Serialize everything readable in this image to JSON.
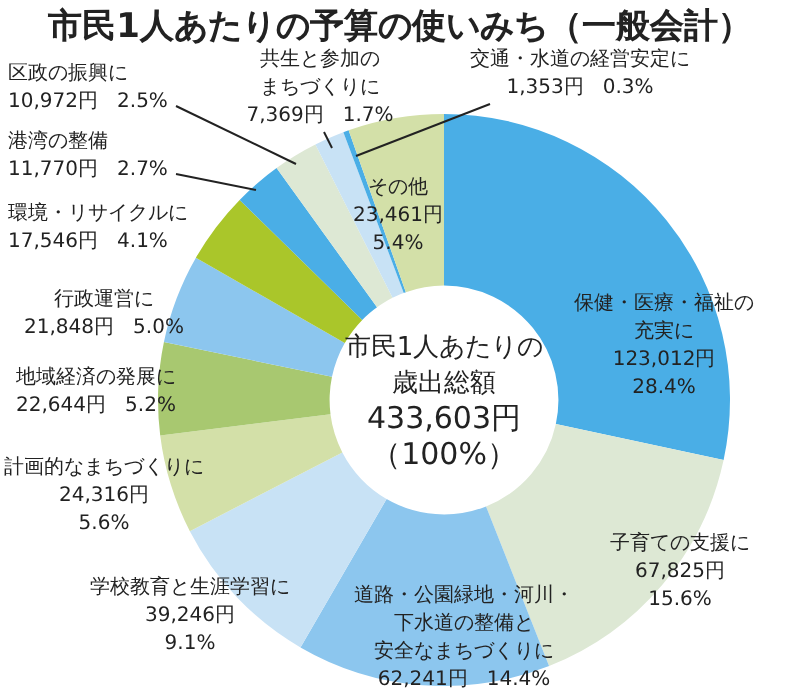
{
  "chart_data": {
    "type": "donut",
    "title": "市民1人あたりの予算の使いみち（一般会計）",
    "categories": [
      "保健・医療・福祉の充実に",
      "子育ての支援に",
      "道路・公園緑地・河川・下水道の整備と安全なまちづくりに",
      "学校教育と生涯学習に",
      "計画的なまちづくりに",
      "地域経済の発展に",
      "行政運営に",
      "環境・リサイクルに",
      "港湾の整備",
      "区政の振興に",
      "共生と参加のまちづくりに",
      "交通・水道の経営安定に",
      "その他"
    ],
    "values": [
      123012,
      67825,
      62241,
      39246,
      24316,
      22644,
      21848,
      17546,
      11770,
      10972,
      7369,
      1353,
      23461
    ],
    "colors": [
      "#4aaee6",
      "#dde8d4",
      "#8cc6ee",
      "#c8e2f5",
      "#d3e0a8",
      "#a8c870",
      "#8cc6ee",
      "#aac62a",
      "#4aaee6",
      "#dde8d4",
      "#c8e2f5",
      "#4aaee6",
      "#d3e0a8"
    ],
    "value_labels": [
      "123,012円 28.4%",
      "67,825円 15.6%",
      "62,241円 14.4%",
      "39,246円 9.1%",
      "24,316円 5.6%",
      "22,644円 5.2%",
      "21,848円 5.0%",
      "17,546円 4.1%",
      "11,770円 2.7%",
      "10,972円 2.5%",
      "7,369円 1.7%",
      "1,353円 0.3%",
      "23,461円 5.4%"
    ],
    "annotations": [
      "市民1人あたりの",
      "歳出総額",
      "433,603円",
      "（100%）"
    ]
  }
}
